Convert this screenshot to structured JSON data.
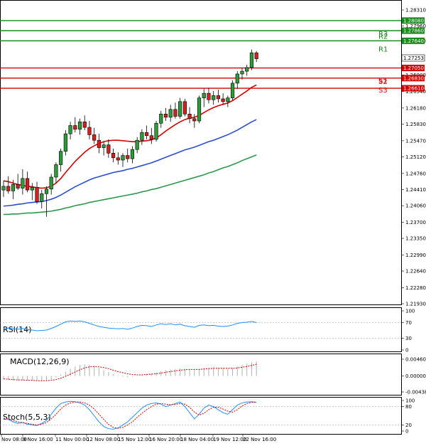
{
  "chart_data": {
    "type": "candlestick",
    "symbol_pair_last": "1.27253",
    "price_axis": {
      "min": 1.2193,
      "max": 1.2831,
      "ticks": [
        "1.28310",
        "1.27960",
        "1.27640",
        "1.27253",
        "1.26900",
        "1.26540",
        "1.26180",
        "1.25830",
        "1.25470",
        "1.25120",
        "1.24760",
        "1.24410",
        "1.24060",
        "1.23700",
        "1.23350",
        "1.22990",
        "1.22640",
        "1.22280",
        "1.21930"
      ]
    },
    "x_axis": {
      "ticks": [
        "Nov 08:00",
        "9 Nov 16:00",
        "11 Nov 00:00",
        "12 Nov 08:00",
        "15 Nov 12:00",
        "16 Nov 20:00",
        "18 Nov 04:00",
        "19 Nov 12:00",
        "22 Nov 16:00"
      ]
    },
    "levels": [
      {
        "name": "",
        "tag": "1.28080",
        "value": 1.2808,
        "color": "#1a8a1a"
      },
      {
        "name": "R3",
        "tag": "1.27860",
        "value": 1.2786,
        "color": "#1a8a1a"
      },
      {
        "name": "R2",
        "tag": "1.27640",
        "value": 1.2764,
        "color": "#1a8a1a"
      },
      {
        "name": "R1",
        "tag": "",
        "value": 1.2764,
        "color": "#1a8a1a"
      },
      {
        "name": "S1",
        "tag": "1.27050",
        "value": 1.2705,
        "color": "#d40000"
      },
      {
        "name": "S2",
        "tag": "1.26830",
        "value": 1.2683,
        "color": "#d40000"
      },
      {
        "name": "S3",
        "tag": "1.26610",
        "value": 1.2661,
        "color": "#d40000"
      }
    ],
    "candles": [
      {
        "o": 1.244,
        "h": 1.246,
        "l": 1.2425,
        "c": 1.2448
      },
      {
        "o": 1.2448,
        "h": 1.247,
        "l": 1.2432,
        "c": 1.2438
      },
      {
        "o": 1.2438,
        "h": 1.2462,
        "l": 1.242,
        "c": 1.2452
      },
      {
        "o": 1.2452,
        "h": 1.2475,
        "l": 1.244,
        "c": 1.2444
      },
      {
        "o": 1.2444,
        "h": 1.2485,
        "l": 1.243,
        "c": 1.2465
      },
      {
        "o": 1.2465,
        "h": 1.248,
        "l": 1.2435,
        "c": 1.244
      },
      {
        "o": 1.244,
        "h": 1.2455,
        "l": 1.2418,
        "c": 1.2446
      },
      {
        "o": 1.2446,
        "h": 1.2458,
        "l": 1.241,
        "c": 1.2415
      },
      {
        "o": 1.2415,
        "h": 1.244,
        "l": 1.24,
        "c": 1.2432
      },
      {
        "o": 1.2432,
        "h": 1.2448,
        "l": 1.2382,
        "c": 1.2442
      },
      {
        "o": 1.2442,
        "h": 1.2475,
        "l": 1.243,
        "c": 1.2468
      },
      {
        "o": 1.2468,
        "h": 1.25,
        "l": 1.2455,
        "c": 1.2495
      },
      {
        "o": 1.2495,
        "h": 1.253,
        "l": 1.248,
        "c": 1.2524
      },
      {
        "o": 1.2524,
        "h": 1.257,
        "l": 1.2515,
        "c": 1.2562
      },
      {
        "o": 1.2562,
        "h": 1.2588,
        "l": 1.255,
        "c": 1.258
      },
      {
        "o": 1.258,
        "h": 1.2598,
        "l": 1.2565,
        "c": 1.2572
      },
      {
        "o": 1.2572,
        "h": 1.2595,
        "l": 1.256,
        "c": 1.2588
      },
      {
        "o": 1.2588,
        "h": 1.2602,
        "l": 1.257,
        "c": 1.2576
      },
      {
        "o": 1.2576,
        "h": 1.259,
        "l": 1.255,
        "c": 1.256
      },
      {
        "o": 1.256,
        "h": 1.2575,
        "l": 1.254,
        "c": 1.2548
      },
      {
        "o": 1.2548,
        "h": 1.2562,
        "l": 1.252,
        "c": 1.2532
      },
      {
        "o": 1.2532,
        "h": 1.2545,
        "l": 1.2515,
        "c": 1.2538
      },
      {
        "o": 1.2538,
        "h": 1.255,
        "l": 1.251,
        "c": 1.252
      },
      {
        "o": 1.252,
        "h": 1.253,
        "l": 1.25,
        "c": 1.251
      },
      {
        "o": 1.251,
        "h": 1.2522,
        "l": 1.2495,
        "c": 1.2505
      },
      {
        "o": 1.2505,
        "h": 1.252,
        "l": 1.249,
        "c": 1.2515
      },
      {
        "o": 1.2515,
        "h": 1.253,
        "l": 1.25,
        "c": 1.2508
      },
      {
        "o": 1.2508,
        "h": 1.2535,
        "l": 1.2498,
        "c": 1.2528
      },
      {
        "o": 1.2528,
        "h": 1.2555,
        "l": 1.252,
        "c": 1.2548
      },
      {
        "o": 1.2548,
        "h": 1.2572,
        "l": 1.2538,
        "c": 1.2565
      },
      {
        "o": 1.2565,
        "h": 1.258,
        "l": 1.255,
        "c": 1.2558
      },
      {
        "o": 1.2558,
        "h": 1.2575,
        "l": 1.254,
        "c": 1.255
      },
      {
        "o": 1.255,
        "h": 1.259,
        "l": 1.2545,
        "c": 1.2585
      },
      {
        "o": 1.2585,
        "h": 1.2612,
        "l": 1.2575,
        "c": 1.2605
      },
      {
        "o": 1.2605,
        "h": 1.2618,
        "l": 1.259,
        "c": 1.2598
      },
      {
        "o": 1.2598,
        "h": 1.2625,
        "l": 1.2588,
        "c": 1.2615
      },
      {
        "o": 1.2615,
        "h": 1.263,
        "l": 1.2595,
        "c": 1.26
      },
      {
        "o": 1.26,
        "h": 1.264,
        "l": 1.2595,
        "c": 1.2632
      },
      {
        "o": 1.2632,
        "h": 1.2638,
        "l": 1.26,
        "c": 1.2605
      },
      {
        "o": 1.2605,
        "h": 1.262,
        "l": 1.2585,
        "c": 1.2595
      },
      {
        "o": 1.2595,
        "h": 1.2605,
        "l": 1.2575,
        "c": 1.259
      },
      {
        "o": 1.259,
        "h": 1.2645,
        "l": 1.2585,
        "c": 1.264
      },
      {
        "o": 1.264,
        "h": 1.266,
        "l": 1.262,
        "c": 1.265
      },
      {
        "o": 1.265,
        "h": 1.2662,
        "l": 1.2628,
        "c": 1.2636
      },
      {
        "o": 1.2636,
        "h": 1.2655,
        "l": 1.2625,
        "c": 1.2645
      },
      {
        "o": 1.2645,
        "h": 1.2658,
        "l": 1.263,
        "c": 1.2638
      },
      {
        "o": 1.2638,
        "h": 1.265,
        "l": 1.2625,
        "c": 1.2632
      },
      {
        "o": 1.2632,
        "h": 1.2645,
        "l": 1.262,
        "c": 1.264
      },
      {
        "o": 1.264,
        "h": 1.2678,
        "l": 1.2635,
        "c": 1.2672
      },
      {
        "o": 1.2672,
        "h": 1.2698,
        "l": 1.266,
        "c": 1.2692
      },
      {
        "o": 1.2692,
        "h": 1.2705,
        "l": 1.268,
        "c": 1.2698
      },
      {
        "o": 1.2698,
        "h": 1.2712,
        "l": 1.2688,
        "c": 1.2706
      },
      {
        "o": 1.2706,
        "h": 1.2745,
        "l": 1.27,
        "c": 1.2738
      },
      {
        "o": 1.2738,
        "h": 1.2742,
        "l": 1.2718,
        "c": 1.2725
      }
    ],
    "moving_averages": [
      {
        "color": "#d40000",
        "values": [
          1.246,
          1.2458,
          1.2455,
          1.2452,
          1.245,
          1.2448,
          1.2447,
          1.2445,
          1.2444,
          1.2445,
          1.2448,
          1.2455,
          1.2465,
          1.2478,
          1.249,
          1.2502,
          1.2512,
          1.2522,
          1.253,
          1.2536,
          1.2541,
          1.2545,
          1.2547,
          1.2548,
          1.2548,
          1.2547,
          1.2546,
          1.2545,
          1.2545,
          1.2546,
          1.2547,
          1.2549,
          1.2553,
          1.256,
          1.2568,
          1.2575,
          1.2582,
          1.2588,
          1.2593,
          1.2596,
          1.2598,
          1.2602,
          1.2608,
          1.2614,
          1.2619,
          1.2623,
          1.2626,
          1.2629,
          1.2634,
          1.2641,
          1.2648,
          1.2655,
          1.2663,
          1.2668
        ]
      },
      {
        "color": "#2a4fd0",
        "values": [
          1.2405,
          1.2406,
          1.2407,
          1.2409,
          1.241,
          1.2412,
          1.2413,
          1.2414,
          1.2415,
          1.2417,
          1.242,
          1.2424,
          1.2429,
          1.2435,
          1.2441,
          1.2447,
          1.2452,
          1.2457,
          1.2462,
          1.2466,
          1.2469,
          1.2472,
          1.2475,
          1.2478,
          1.248,
          1.2482,
          1.2485,
          1.2487,
          1.249,
          1.2493,
          1.2496,
          1.2499,
          1.2503,
          1.2507,
          1.2511,
          1.2515,
          1.2519,
          1.2523,
          1.2527,
          1.253,
          1.2533,
          1.2537,
          1.2541,
          1.2545,
          1.2548,
          1.2552,
          1.2556,
          1.256,
          1.2565,
          1.257,
          1.2576,
          1.2582,
          1.2588,
          1.2593
        ]
      },
      {
        "color": "#2a9a4a",
        "values": [
          1.2387,
          1.2387,
          1.2388,
          1.2388,
          1.2389,
          1.239,
          1.239,
          1.2391,
          1.2392,
          1.2393,
          1.2394,
          1.2396,
          1.2398,
          1.2401,
          1.2403,
          1.2406,
          1.2408,
          1.241,
          1.2413,
          1.2415,
          1.2417,
          1.2419,
          1.2421,
          1.2423,
          1.2425,
          1.2427,
          1.2429,
          1.2431,
          1.2433,
          1.2436,
          1.2438,
          1.2441,
          1.2443,
          1.2446,
          1.2449,
          1.2452,
          1.2455,
          1.2458,
          1.2461,
          1.2464,
          1.2467,
          1.247,
          1.2473,
          1.2477,
          1.248,
          1.2484,
          1.2488,
          1.2491,
          1.2495,
          1.2499,
          1.2504,
          1.2508,
          1.2512,
          1.2516
        ]
      }
    ],
    "rsi": {
      "label": "RSI(14)",
      "ticks": [
        "100",
        "70",
        "30",
        "0"
      ],
      "values": [
        55,
        56,
        54,
        53,
        55,
        52,
        51,
        49,
        50,
        51,
        55,
        60,
        66,
        72,
        74,
        73,
        74,
        72,
        68,
        64,
        60,
        58,
        56,
        55,
        54,
        55,
        53,
        56,
        60,
        63,
        62,
        60,
        64,
        67,
        65,
        67,
        64,
        66,
        62,
        60,
        58,
        63,
        64,
        62,
        63,
        61,
        60,
        61,
        64,
        68,
        70,
        71,
        73,
        70
      ]
    },
    "macd": {
      "label": "MACD(12,26,9)",
      "ticks": [
        "0.004600",
        "0.000000",
        "-0.004387"
      ],
      "hist": [
        -0.001,
        -0.0011,
        -0.0012,
        -0.0012,
        -0.0012,
        -0.0013,
        -0.0013,
        -0.0014,
        -0.0015,
        -0.0014,
        -0.001,
        -0.0004,
        0.0004,
        0.0012,
        0.002,
        0.0026,
        0.003,
        0.0032,
        0.0031,
        0.0028,
        0.0022,
        0.0016,
        0.001,
        0.0005,
        0.0001,
        -0.0002,
        -0.0003,
        -0.0002,
        0.0001,
        0.0004,
        0.0006,
        0.0007,
        0.001,
        0.0013,
        0.0016,
        0.0018,
        0.0019,
        0.0021,
        0.002,
        0.0019,
        0.0017,
        0.0019,
        0.0022,
        0.0023,
        0.0023,
        0.0022,
        0.0021,
        0.002,
        0.0022,
        0.0026,
        0.003,
        0.0034,
        0.0038,
        0.004
      ],
      "signal": [
        -0.0008,
        -0.0009,
        -0.001,
        -0.0011,
        -0.0011,
        -0.0012,
        -0.0012,
        -0.0013,
        -0.0013,
        -0.0013,
        -0.0012,
        -0.001,
        -0.0006,
        -0.0001,
        0.0005,
        0.0011,
        0.0017,
        0.0022,
        0.0025,
        0.0026,
        0.0025,
        0.0023,
        0.002,
        0.0016,
        0.0012,
        0.0009,
        0.0006,
        0.0004,
        0.0003,
        0.0003,
        0.0004,
        0.0005,
        0.0006,
        0.0008,
        0.001,
        0.0012,
        0.0014,
        0.0016,
        0.0017,
        0.0018,
        0.0018,
        0.0018,
        0.0019,
        0.002,
        0.0021,
        0.0021,
        0.0021,
        0.0021,
        0.0021,
        0.0022,
        0.0024,
        0.0026,
        0.0029,
        0.0032
      ]
    },
    "stoch": {
      "label": "Stoch(5,5,3)",
      "ticks": [
        "100",
        "80",
        "20",
        "0"
      ],
      "k": [
        40,
        38,
        30,
        25,
        28,
        22,
        20,
        18,
        25,
        35,
        55,
        75,
        90,
        95,
        97,
        96,
        92,
        85,
        70,
        50,
        30,
        15,
        8,
        6,
        10,
        20,
        30,
        45,
        60,
        75,
        85,
        90,
        92,
        88,
        80,
        85,
        90,
        95,
        80,
        60,
        40,
        55,
        75,
        85,
        80,
        70,
        60,
        55,
        70,
        85,
        92,
        95,
        96,
        94
      ],
      "d": [
        42,
        40,
        35,
        30,
        28,
        25,
        22,
        20,
        22,
        28,
        40,
        55,
        72,
        85,
        92,
        95,
        95,
        92,
        85,
        72,
        55,
        38,
        22,
        12,
        9,
        12,
        20,
        30,
        45,
        58,
        70,
        80,
        88,
        90,
        88,
        86,
        87,
        90,
        88,
        78,
        62,
        52,
        58,
        70,
        78,
        78,
        72,
        65,
        62,
        70,
        82,
        90,
        94,
        95
      ]
    }
  }
}
